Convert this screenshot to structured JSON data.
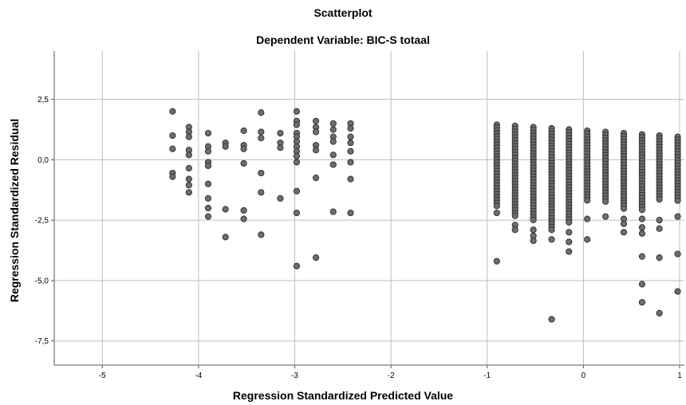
{
  "chart_data": {
    "type": "scatter",
    "title": "Scatterplot",
    "subtitle": "Dependent Variable: BIC-S totaal",
    "xlabel": "Regression Standardized Predicted Value",
    "ylabel": "Regression Standardized Residual",
    "xlim": [
      -5.5,
      1.05
    ],
    "ylim": [
      -8.5,
      4.5
    ],
    "xticks": [
      -5,
      -4,
      -3,
      -2,
      -1,
      0,
      1
    ],
    "xtick_labels": [
      "-5",
      "-4",
      "-3",
      "-2",
      "-1",
      "0",
      "1"
    ],
    "yticks": [
      2.5,
      0,
      -2.5,
      -5,
      -7.5
    ],
    "ytick_labels": [
      "2,5",
      "0,0",
      "-2,5",
      "-5,0",
      "-7,5"
    ],
    "grid": true,
    "marker_color": "#6e6e6e",
    "marker_edge_color": "#333333",
    "groups": [
      {
        "x": -4.27,
        "y": [
          2.0,
          1.0,
          0.45,
          -0.55,
          -0.7
        ]
      },
      {
        "x": -4.1,
        "y": [
          1.35,
          1.15,
          0.95,
          0.4,
          0.2,
          -0.35,
          -0.8,
          -1.05,
          -1.35
        ]
      },
      {
        "x": -3.9,
        "y": [
          1.1,
          0.55,
          0.35,
          -0.1,
          -0.25,
          -1.0,
          -1.6,
          -2.0,
          -2.35
        ]
      },
      {
        "x": -3.72,
        "y": [
          0.7,
          0.55,
          -2.05,
          -3.2
        ]
      },
      {
        "x": -3.53,
        "y": [
          1.2,
          0.6,
          0.45,
          -0.15,
          -2.1,
          -2.45
        ]
      },
      {
        "x": -3.35,
        "y": [
          1.95,
          1.15,
          0.9,
          -0.55,
          -1.35,
          -3.1
        ]
      },
      {
        "x": -3.15,
        "y": [
          1.1,
          0.7,
          0.5,
          -1.6
        ]
      },
      {
        "x": -2.98,
        "y": [
          2.0,
          1.6,
          1.45,
          1.1,
          0.95,
          0.75,
          0.55,
          0.35,
          0.15,
          -0.1,
          -1.3,
          -2.2,
          -4.4
        ]
      },
      {
        "x": -2.78,
        "y": [
          1.6,
          1.35,
          1.15,
          0.6,
          0.4,
          -0.75,
          -4.05
        ]
      },
      {
        "x": -2.6,
        "y": [
          1.5,
          1.25,
          0.95,
          0.75,
          0.2,
          -0.2,
          -2.15
        ]
      },
      {
        "x": -2.42,
        "y": [
          1.5,
          1.3,
          0.95,
          0.7,
          0.35,
          -0.1,
          -0.8,
          -2.2
        ]
      },
      {
        "x": -0.9,
        "ymin": -2.0,
        "ymax": 1.45,
        "extra": [
          -2.2,
          -4.2
        ]
      },
      {
        "x": -0.71,
        "ymin": -2.4,
        "ymax": 1.4,
        "extra": [
          -2.7,
          -2.9
        ]
      },
      {
        "x": -0.52,
        "ymin": -2.6,
        "ymax": 1.35,
        "extra": [
          -2.9,
          -3.15,
          -3.35
        ]
      },
      {
        "x": -0.33,
        "ymin": -3.0,
        "ymax": 1.3,
        "extra": [
          -3.3,
          -6.6
        ]
      },
      {
        "x": -0.15,
        "ymin": -2.6,
        "ymax": 1.25,
        "extra": [
          -3.0,
          -3.4,
          -3.8
        ]
      },
      {
        "x": 0.04,
        "ymin": -1.7,
        "ymax": 1.2,
        "extra": [
          -2.45,
          -3.3
        ]
      },
      {
        "x": 0.23,
        "ymin": -1.75,
        "ymax": 1.15,
        "extra": [
          -2.35
        ]
      },
      {
        "x": 0.42,
        "ymin": -2.1,
        "ymax": 1.1,
        "extra": [
          -2.45,
          -2.65,
          -3.0
        ]
      },
      {
        "x": 0.61,
        "ymin": -2.1,
        "ymax": 1.05,
        "extra": [
          -2.45,
          -2.8,
          -3.05,
          -4.0,
          -5.15,
          -5.9
        ]
      },
      {
        "x": 0.79,
        "ymin": -1.75,
        "ymax": 1.0,
        "extra": [
          -2.5,
          -2.85,
          -4.05,
          -6.35
        ]
      },
      {
        "x": 0.98,
        "ymin": -1.7,
        "ymax": 0.95,
        "extra": [
          -2.35,
          -3.9,
          -5.45
        ]
      }
    ],
    "column_step": 0.12
  }
}
